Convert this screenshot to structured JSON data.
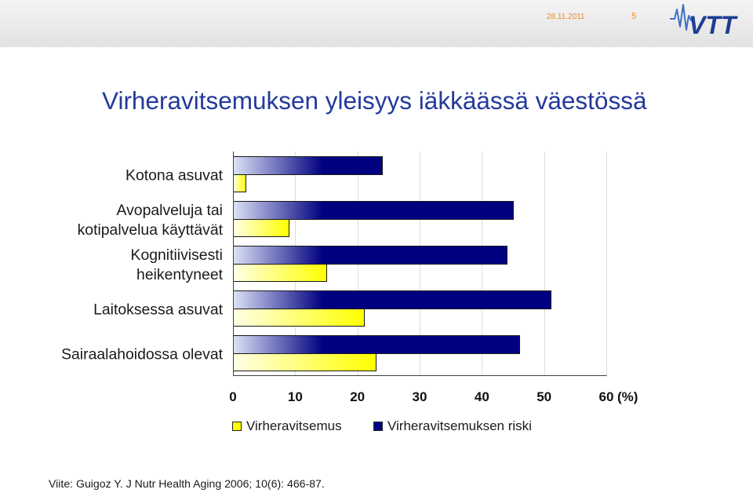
{
  "header": {
    "date": "28.11.2011",
    "page_number": "5",
    "logo_text": "VTT"
  },
  "reference": "Viite: Guigoz Y. J Nutr Health Aging 2006; 10(6): 466-87.",
  "colors": {
    "title": "#23399b",
    "header_text": "#f08a24",
    "logo": "#1e3e94",
    "logo_accent": "#3d6fc6"
  },
  "chart_data": {
    "type": "bar",
    "orientation": "horizontal",
    "title": "Virheravitsemuksen yleisyys iäkkäässä väestössä",
    "xlabel": "(%)",
    "xlim": [
      0,
      60
    ],
    "xticks": [
      0,
      10,
      20,
      30,
      40,
      50,
      60
    ],
    "grid": true,
    "legend_position": "bottom",
    "categories": [
      "Kotona asuvat",
      "Avopalveluja tai\nkotipalvelua käyttävät",
      "Kognitiivisesti\nheikentyneet",
      "Laitoksessa asuvat",
      "Sairaalahoidossa olevat"
    ],
    "series": [
      {
        "name": "Virheravitsemus",
        "values": [
          2,
          9,
          15,
          21,
          23
        ],
        "color": "#ffff00",
        "color_light": "#ffffe6"
      },
      {
        "name": "Virheravitsemuksen riski",
        "values": [
          24,
          45,
          44,
          51,
          46
        ],
        "color": "#000080",
        "color_light": "#dde3f6"
      }
    ]
  }
}
